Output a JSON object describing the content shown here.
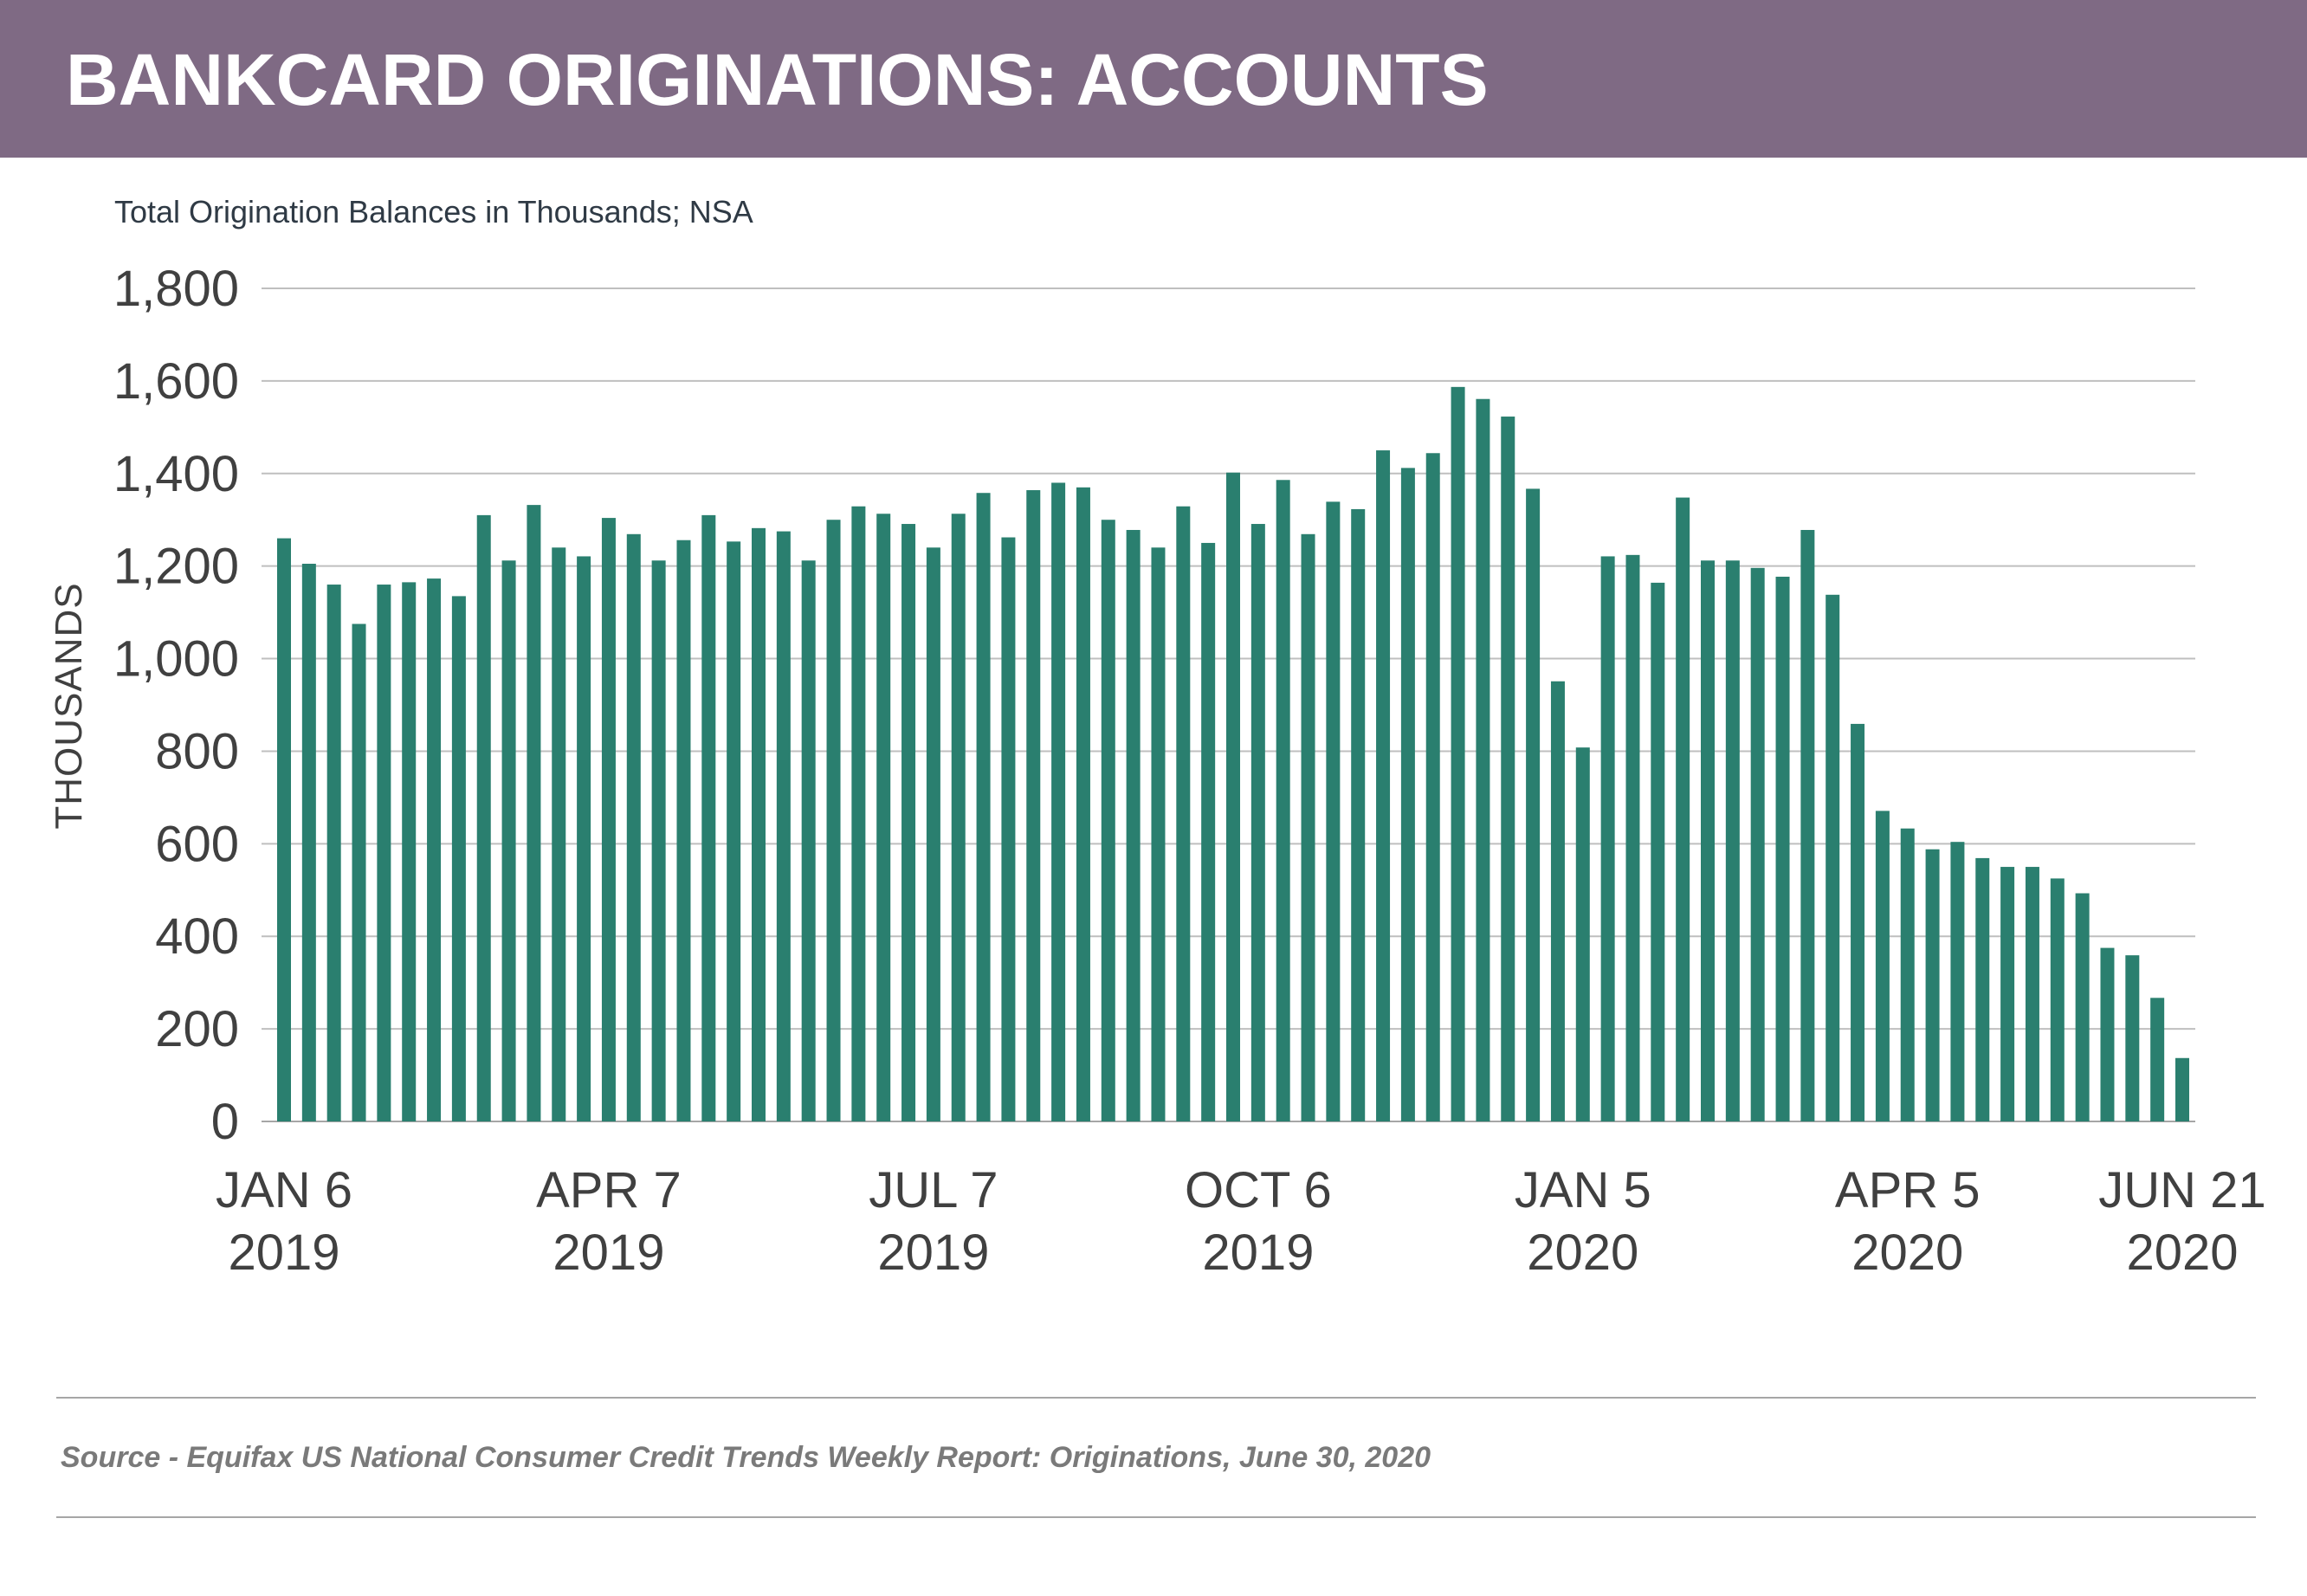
{
  "header": {
    "title": "BANKCARD ORIGINATIONS: ACCOUNTS"
  },
  "footer": {
    "source": "Source - Equifax US National Consumer Credit Trends Weekly Report: Originations, June 30, 2020"
  },
  "colors": {
    "header": "#7f6a84",
    "bar": "#2a7f6f",
    "grid": "#bfbfbf"
  },
  "chart_data": {
    "type": "bar",
    "title": "BANKCARD ORIGINATIONS: ACCOUNTS",
    "subtitle": "Total Origination Balances in Thousands; NSA",
    "xlabel": "",
    "ylabel": "THOUSANDS",
    "ylim": [
      0,
      1800
    ],
    "yticks": [
      "0",
      "200",
      "400",
      "600",
      "800",
      "1,000",
      "1,200",
      "1,400",
      "1,600",
      "1,800"
    ],
    "grid": true,
    "x_frequency": "weekly",
    "x_range": [
      "2019-01-06",
      "2020-06-21"
    ],
    "xtick_labels": [
      {
        "week_index": 0,
        "line1": "JAN 6",
        "line2": "2019"
      },
      {
        "week_index": 13,
        "line1": "APR 7",
        "line2": "2019"
      },
      {
        "week_index": 26,
        "line1": "JUL 7",
        "line2": "2019"
      },
      {
        "week_index": 39,
        "line1": "OCT 6",
        "line2": "2019"
      },
      {
        "week_index": 52,
        "line1": "JAN 5",
        "line2": "2020"
      },
      {
        "week_index": 65,
        "line1": "APR 5",
        "line2": "2020"
      },
      {
        "week_index": 76,
        "line1": "JUN 21",
        "line2": "2020"
      }
    ],
    "values": [
      1260,
      1205,
      1160,
      1075,
      1160,
      1165,
      1173,
      1135,
      1310,
      1212,
      1332,
      1240,
      1221,
      1304,
      1269,
      1212,
      1256,
      1310,
      1253,
      1282,
      1275,
      1212,
      1300,
      1329,
      1313,
      1291,
      1240,
      1313,
      1358,
      1262,
      1364,
      1380,
      1370,
      1300,
      1278,
      1240,
      1329,
      1250,
      1402,
      1291,
      1386,
      1269,
      1339,
      1323,
      1450,
      1412,
      1444,
      1587,
      1561,
      1523,
      1367,
      951,
      808,
      1221,
      1224,
      1164,
      1348,
      1212,
      1212,
      1196,
      1177,
      1278,
      1138,
      859,
      671,
      633,
      588,
      604,
      569,
      550,
      550,
      525,
      493,
      375,
      359,
      267,
      137
    ]
  }
}
